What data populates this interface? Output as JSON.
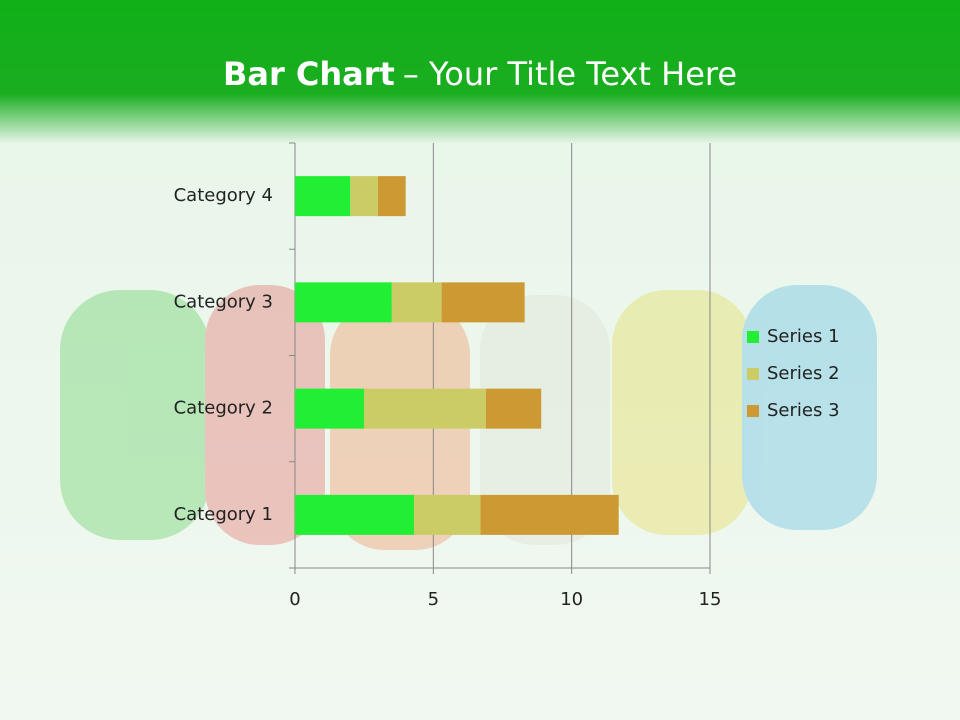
{
  "chart_data": {
    "type": "stacked-bar-horizontal",
    "title": "Bar Chart",
    "subtitle": "– Your Title Text Here",
    "categories": [
      "Category 1",
      "Category 2",
      "Category 3",
      "Category 4"
    ],
    "series": [
      {
        "name": "Series 1",
        "color": "#22ee33",
        "values": [
          4.3,
          2.5,
          3.5,
          2.0
        ]
      },
      {
        "name": "Series 2",
        "color": "#cccc66",
        "values": [
          2.4,
          4.4,
          1.8,
          1.0
        ]
      },
      {
        "name": "Series 3",
        "color": "#cc9933",
        "values": [
          5.0,
          2.0,
          3.0,
          1.0
        ]
      }
    ],
    "xlim": [
      0,
      15
    ],
    "xticks": [
      0,
      5,
      10,
      15
    ],
    "grid": true,
    "legend": "right"
  }
}
